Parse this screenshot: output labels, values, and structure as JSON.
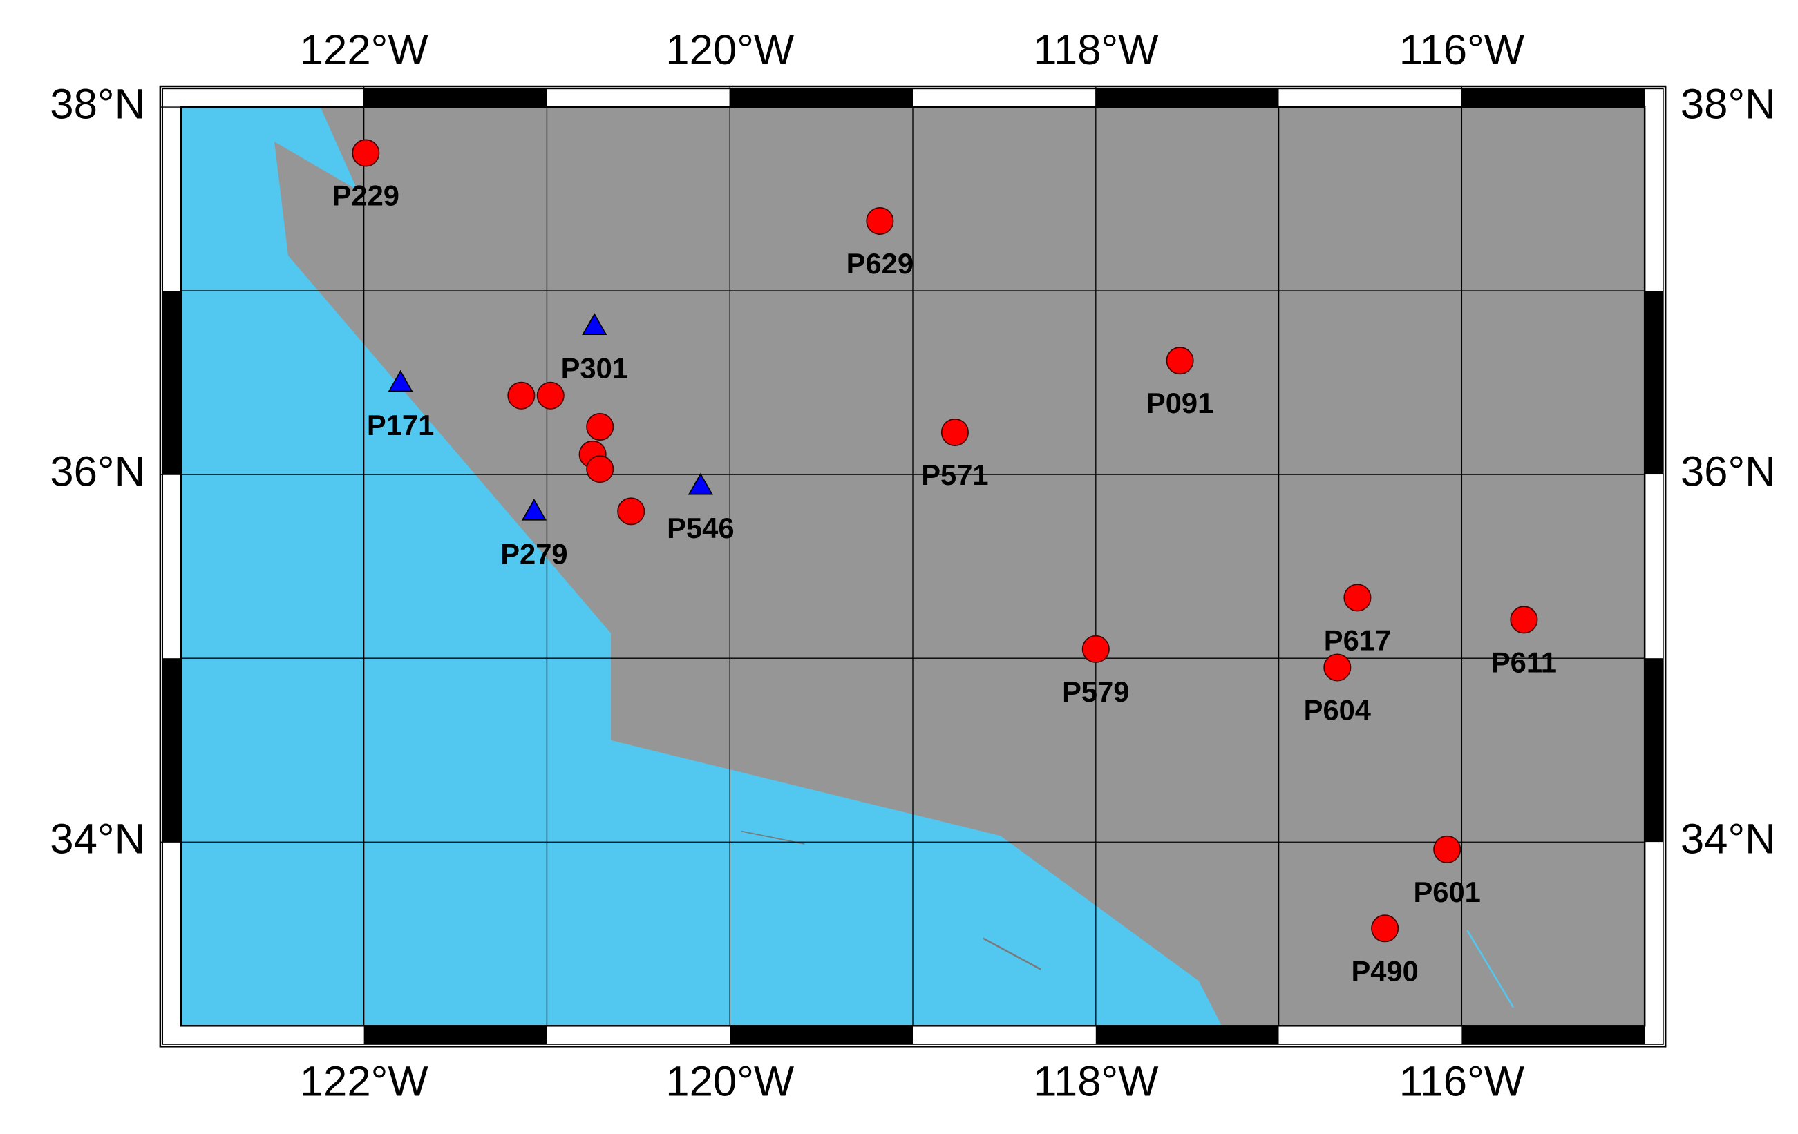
{
  "chart_data": {
    "type": "map",
    "xlim": [
      -123,
      -115
    ],
    "ylim": [
      33,
      38
    ],
    "xticks": [
      {
        "value": -122,
        "label": "122°W"
      },
      {
        "value": -120,
        "label": "120°W"
      },
      {
        "value": -118,
        "label": "118°W"
      },
      {
        "value": -116,
        "label": "116°W"
      }
    ],
    "yticks": [
      {
        "value": 38,
        "label": "38°N"
      },
      {
        "value": 36,
        "label": "36°N"
      },
      {
        "value": 34,
        "label": "34°N"
      }
    ],
    "xgrid": [
      -122,
      -121,
      -120,
      -119,
      -118,
      -117,
      -116
    ],
    "ygrid": [
      37,
      36,
      35,
      34
    ],
    "land_color": "#969696",
    "ocean_color": "#52c8f0",
    "series": [
      {
        "marker": "circle",
        "color": "#ff0000",
        "x": [
          -121.99,
          -119.18,
          -117.54,
          -118.77,
          -121.14,
          -120.98,
          -120.71,
          -120.75,
          -120.71,
          -120.54,
          -118.0,
          -116.57,
          -116.68,
          -115.66,
          -116.08,
          -116.42
        ],
        "y": [
          37.75,
          37.38,
          36.62,
          36.23,
          36.43,
          36.43,
          36.26,
          36.11,
          36.03,
          35.8,
          35.05,
          35.33,
          34.95,
          35.21,
          33.96,
          33.53
        ],
        "labels": [
          "P229",
          "P629",
          "P091",
          "P571",
          null,
          null,
          null,
          null,
          null,
          null,
          "P579",
          "P617",
          "P604",
          "P611",
          "P601",
          "P490"
        ]
      },
      {
        "marker": "triangle",
        "color": "#0000ff",
        "x": [
          -120.74,
          -121.8,
          -121.07,
          -120.16
        ],
        "y": [
          36.81,
          36.5,
          35.8,
          35.94
        ],
        "labels": [
          "P301",
          "P171",
          "P279",
          "P546"
        ]
      }
    ]
  }
}
